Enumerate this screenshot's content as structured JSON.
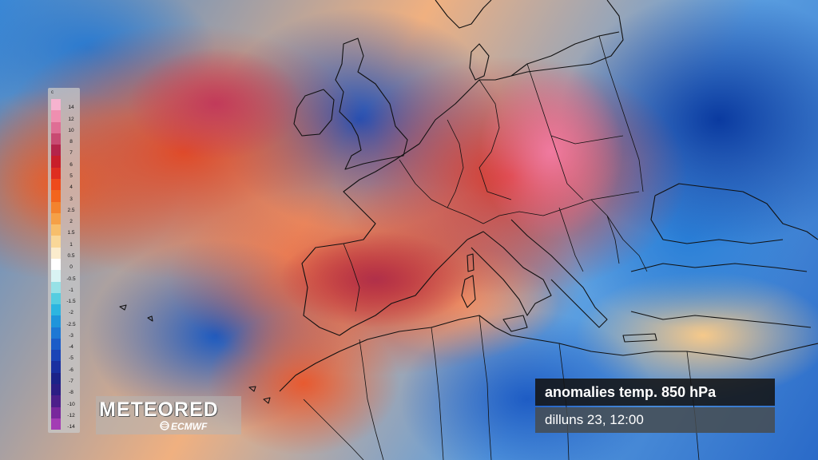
{
  "map": {
    "legend": {
      "unit": "c",
      "ticks": [
        "14",
        "12",
        "10",
        "8",
        "7",
        "6",
        "5",
        "4",
        "3",
        "2.5",
        "2",
        "1.5",
        "1",
        "0.5",
        "0",
        "-0.5",
        "-1",
        "-1.5",
        "-2",
        "-2.5",
        "-3",
        "-4",
        "-5",
        "-6",
        "-7",
        "-8",
        "-10",
        "-12",
        "-14"
      ],
      "colors": [
        "#f6b3cf",
        "#ef8fb0",
        "#df6e95",
        "#c84a72",
        "#b4244a",
        "#c81e2a",
        "#de2e20",
        "#ee4a1c",
        "#f2651e",
        "#f3832e",
        "#f5a047",
        "#f7be6b",
        "#f9d798",
        "#fbeccd",
        "#ffffff",
        "#d9f3f3",
        "#97e1e6",
        "#55cde0",
        "#2cb5e0",
        "#1f95db",
        "#1d78d4",
        "#1b5cc8",
        "#1a44b6",
        "#1a30a0",
        "#1c2288",
        "#2c1d84",
        "#4c1f8a",
        "#78289c",
        "#a33cb4"
      ]
    },
    "brand": {
      "name": "METEORED",
      "provider": "ECMWF"
    },
    "caption": {
      "title": "anomalies temp. 850 hPa",
      "time": "dilluns 23, 12:00"
    }
  }
}
